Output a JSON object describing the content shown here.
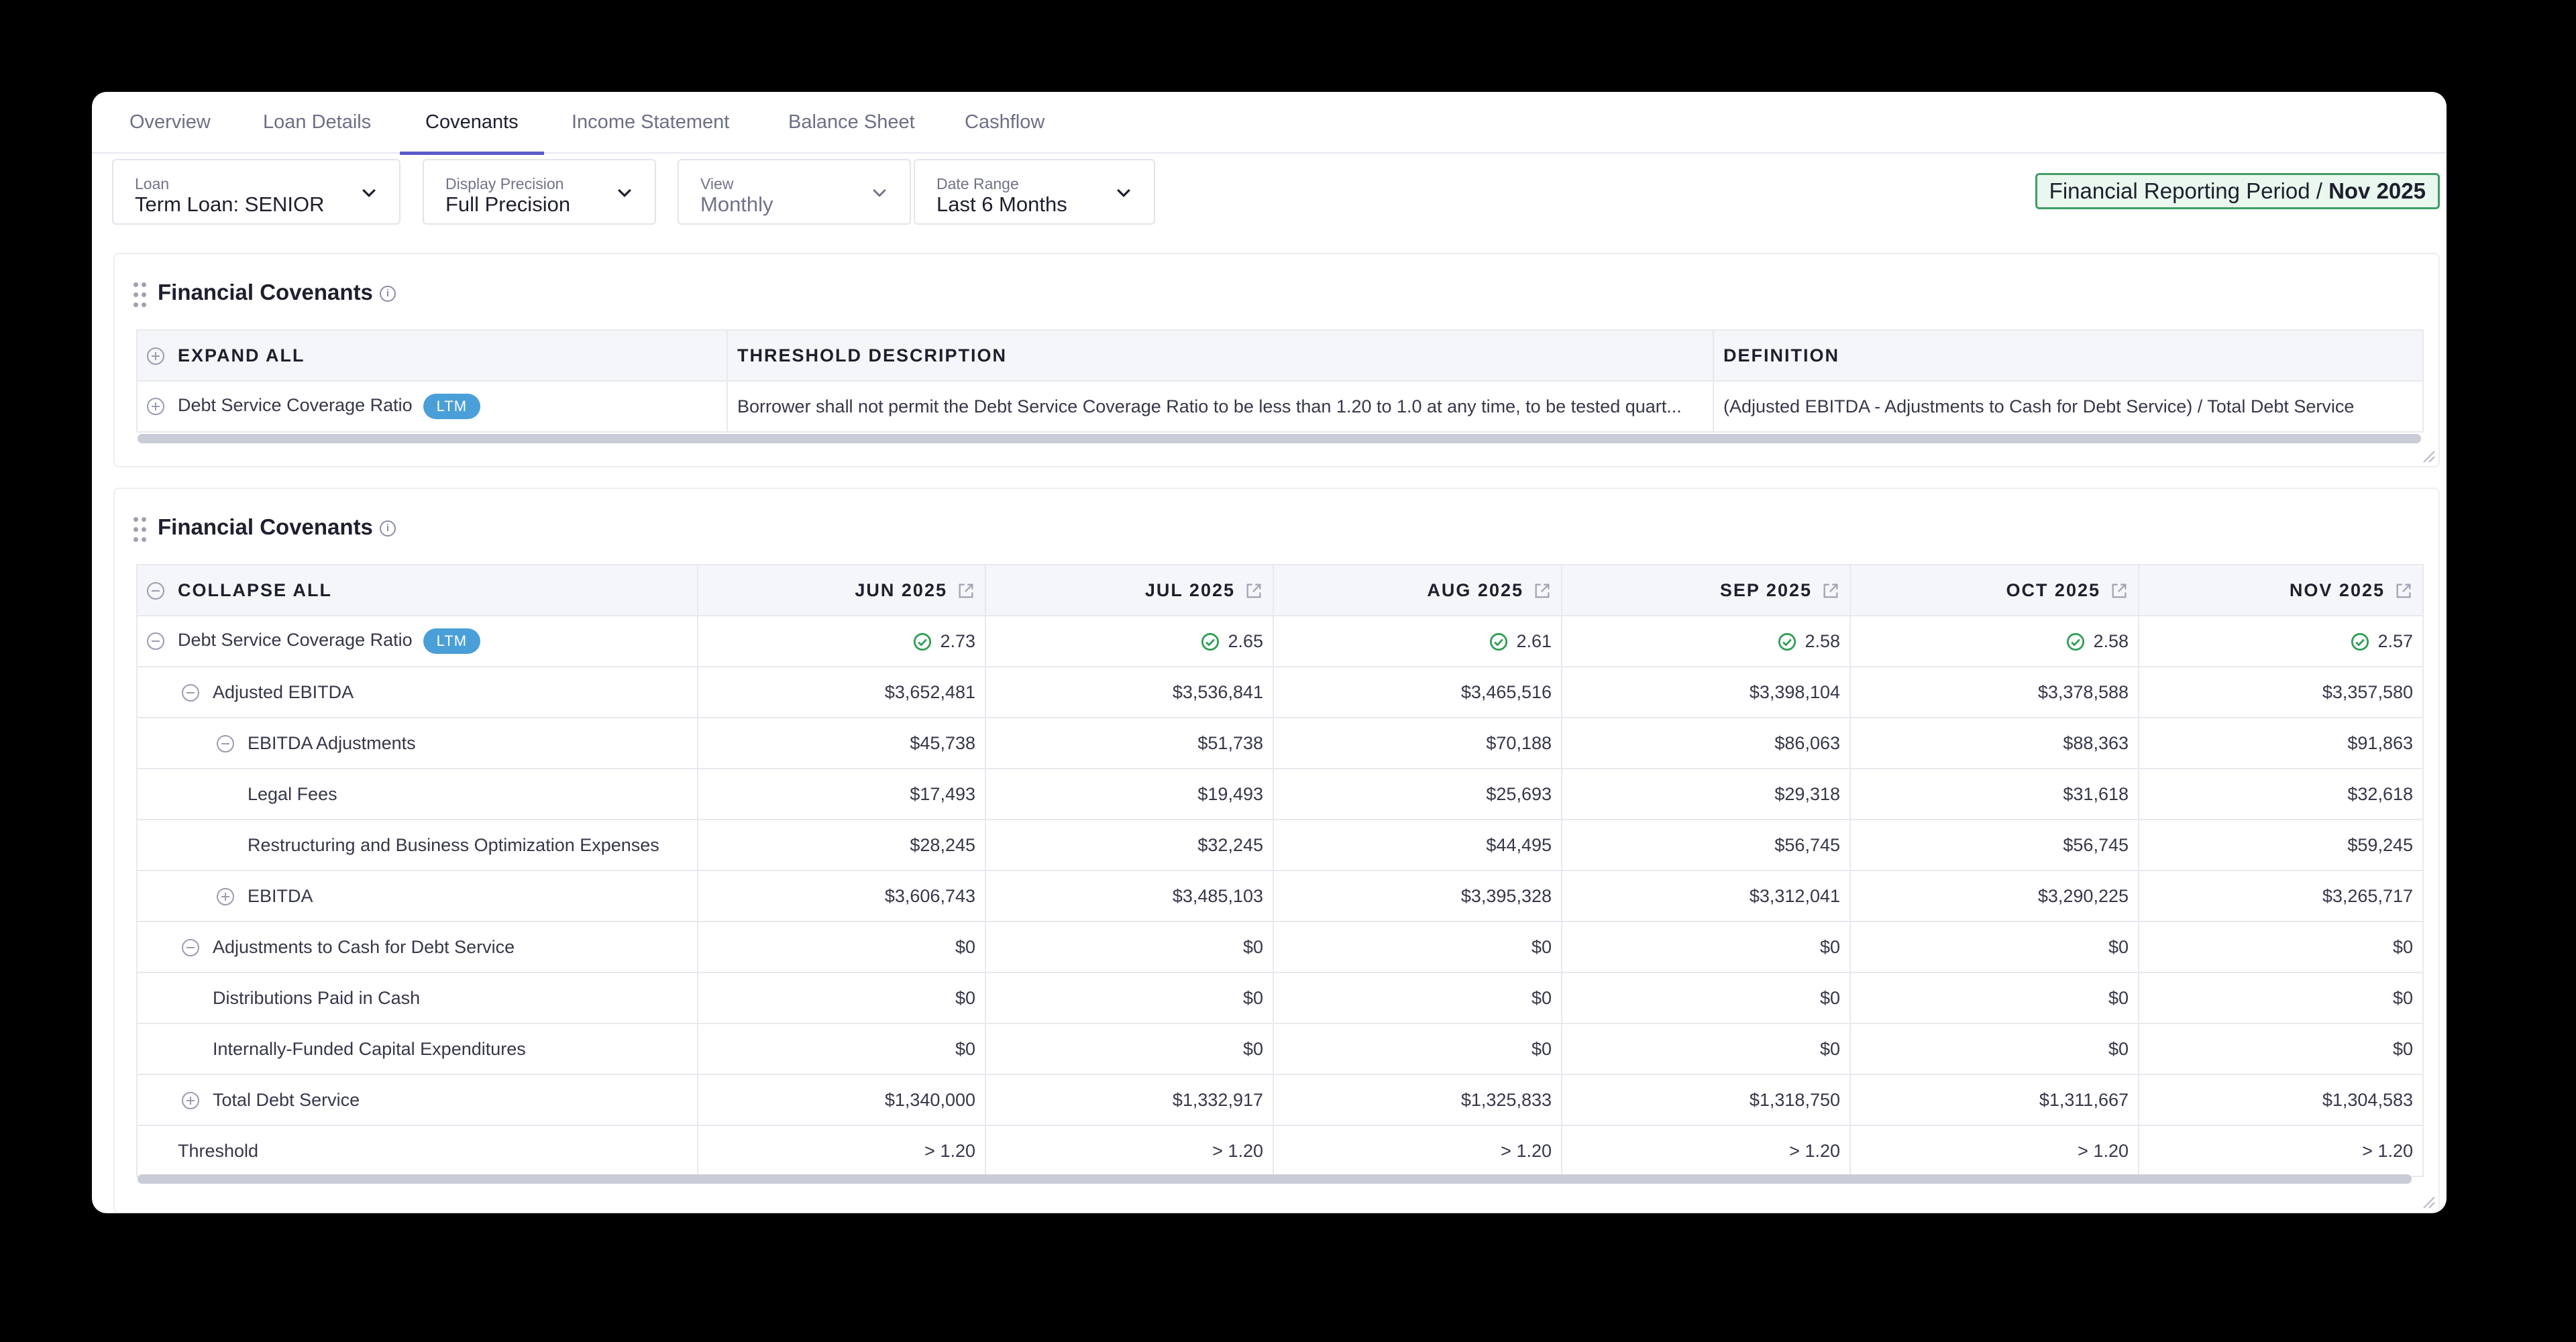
{
  "tabs": [
    "Overview",
    "Loan Details",
    "Covenants",
    "Income Statement",
    "Balance Sheet",
    "Cashflow"
  ],
  "active_tab": "Covenants",
  "filters": {
    "loan": {
      "label": "Loan",
      "value": "Term Loan: SENIOR"
    },
    "precision": {
      "label": "Display Precision",
      "value": "Full Precision"
    },
    "view": {
      "label": "View",
      "value": "Monthly"
    },
    "date_range": {
      "label": "Date Range",
      "value": "Last 6 Months"
    }
  },
  "period": {
    "prefix": "Financial Reporting Period / ",
    "value": "Nov 2025"
  },
  "panel1": {
    "title": "Financial Covenants",
    "headers": {
      "expand": "EXPAND ALL",
      "threshold": "THRESHOLD DESCRIPTION",
      "definition": "DEFINITION"
    },
    "row": {
      "name": "Debt Service Coverage Ratio",
      "badge": "LTM",
      "threshold": "Borrower shall not permit the Debt Service Coverage Ratio to be less than 1.20 to 1.0 at any time, to be tested quart...",
      "definition": "(Adjusted EBITDA - Adjustments to Cash for Debt Service) / Total Debt Service"
    }
  },
  "panel2": {
    "title": "Financial Covenants",
    "collapse_label": "COLLAPSE ALL",
    "months": [
      "JUN 2025",
      "JUL 2025",
      "AUG 2025",
      "SEP 2025",
      "OCT 2025",
      "NOV 2025"
    ],
    "rows": [
      {
        "name": "Debt Service Coverage Ratio",
        "badge": "LTM",
        "values": [
          "2.73",
          "2.65",
          "2.61",
          "2.58",
          "2.58",
          "2.57"
        ]
      },
      {
        "name": "Adjusted EBITDA",
        "values": [
          "$3,652,481",
          "$3,536,841",
          "$3,465,516",
          "$3,398,104",
          "$3,378,588",
          "$3,357,580"
        ]
      },
      {
        "name": "EBITDA Adjustments",
        "values": [
          "$45,738",
          "$51,738",
          "$70,188",
          "$86,063",
          "$88,363",
          "$91,863"
        ]
      },
      {
        "name": "Legal Fees",
        "values": [
          "$17,493",
          "$19,493",
          "$25,693",
          "$29,318",
          "$31,618",
          "$32,618"
        ]
      },
      {
        "name": "Restructuring and Business Optimization Expenses",
        "values": [
          "$28,245",
          "$32,245",
          "$44,495",
          "$56,745",
          "$56,745",
          "$59,245"
        ]
      },
      {
        "name": "EBITDA",
        "values": [
          "$3,606,743",
          "$3,485,103",
          "$3,395,328",
          "$3,312,041",
          "$3,290,225",
          "$3,265,717"
        ]
      },
      {
        "name": "Adjustments to Cash for Debt Service",
        "values": [
          "$0",
          "$0",
          "$0",
          "$0",
          "$0",
          "$0"
        ]
      },
      {
        "name": "Distributions Paid in Cash",
        "values": [
          "$0",
          "$0",
          "$0",
          "$0",
          "$0",
          "$0"
        ]
      },
      {
        "name": "Internally-Funded Capital Expenditures",
        "values": [
          "$0",
          "$0",
          "$0",
          "$0",
          "$0",
          "$0"
        ]
      },
      {
        "name": "Total Debt Service",
        "values": [
          "$1,340,000",
          "$1,332,917",
          "$1,325,833",
          "$1,318,750",
          "$1,311,667",
          "$1,304,583"
        ]
      },
      {
        "name": "Threshold",
        "values": [
          "> 1.20",
          "> 1.20",
          "> 1.20",
          "> 1.20",
          "> 1.20",
          "> 1.20"
        ]
      }
    ]
  },
  "colors": {
    "accent": "#5a5bc9",
    "ltm_badge": "#4a9fd8",
    "pass": "#2f9e55",
    "period_border": "#3f9d63"
  }
}
